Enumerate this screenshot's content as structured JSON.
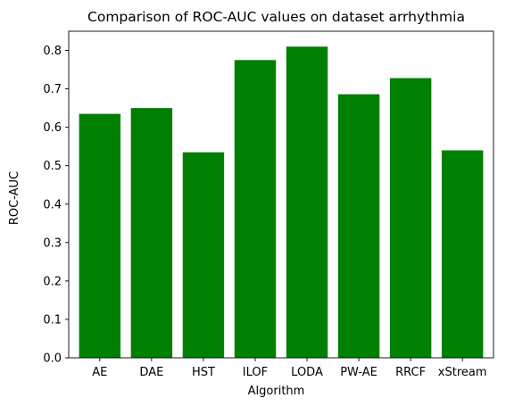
{
  "chart_data": {
    "type": "bar",
    "title": "Comparison of ROC-AUC values on dataset arrhythmia",
    "xlabel": "Algorithm",
    "ylabel": "ROC-AUC",
    "categories": [
      "AE",
      "DAE",
      "HST",
      "ILOF",
      "LODA",
      "PW-AE",
      "RRCF",
      "xStream"
    ],
    "values": [
      0.635,
      0.65,
      0.535,
      0.775,
      0.81,
      0.686,
      0.728,
      0.54
    ],
    "ylim": [
      0,
      0.85
    ],
    "yticks": [
      0.0,
      0.1,
      0.2,
      0.3,
      0.4,
      0.5,
      0.6,
      0.7,
      0.8
    ],
    "ytick_labels": [
      "0.0",
      "0.1",
      "0.2",
      "0.3",
      "0.4",
      "0.5",
      "0.6",
      "0.7",
      "0.8"
    ],
    "bar_color": "#008000",
    "grid": false,
    "legend": "none"
  }
}
